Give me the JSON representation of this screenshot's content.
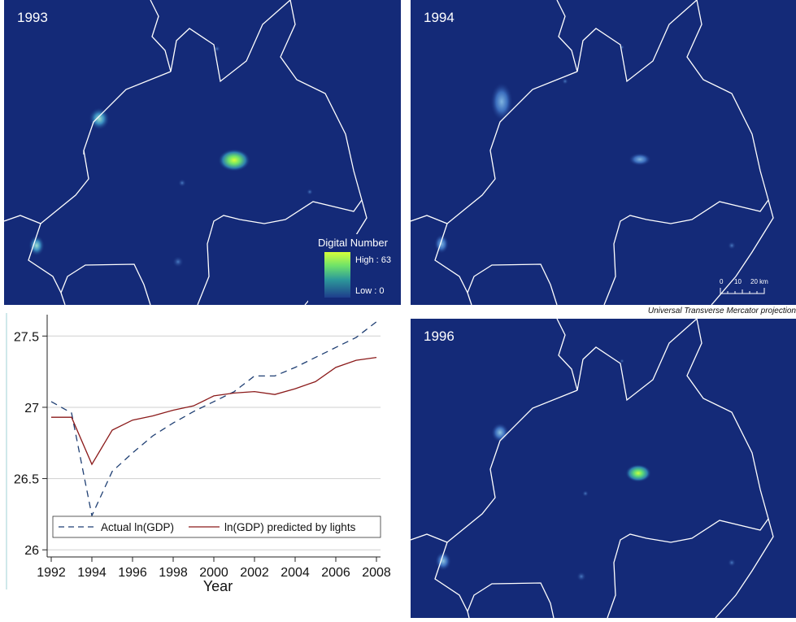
{
  "maps": [
    {
      "year_label": "1993"
    },
    {
      "year_label": "1994"
    },
    {
      "year_label": "1996"
    }
  ],
  "legend": {
    "title": "Digital Number",
    "high_label": "High : 63",
    "low_label": "Low : 0",
    "ramp_colors": [
      "#d6ff3a",
      "#6ee26a",
      "#2d9a9a",
      "#1e3e8c"
    ]
  },
  "scalebar": {
    "labels": [
      "0",
      "10",
      "20 km"
    ]
  },
  "projection_note": "Universal Transverse Mercator projection",
  "colors": {
    "background": "#142a78",
    "border": "#ffffff",
    "light_high": "#c8ff40",
    "light_mid": "#5ab4c8"
  },
  "chart_data": {
    "type": "line",
    "xlabel": "Year",
    "ylabel": "",
    "xlim": [
      1991.8,
      2008.2
    ],
    "ylim": [
      25.95,
      27.65
    ],
    "xticks": [
      1992,
      1994,
      1996,
      1998,
      2000,
      2002,
      2004,
      2006,
      2008
    ],
    "yticks": [
      26,
      26.5,
      27,
      27.5
    ],
    "ytick_labels": [
      "26",
      "26.5",
      "27",
      "27.5"
    ],
    "grid": true,
    "legend_position": "bottom",
    "x": [
      1992,
      1993,
      1994,
      1995,
      1996,
      1997,
      1998,
      1999,
      2000,
      2001,
      2002,
      2003,
      2004,
      2005,
      2006,
      2007,
      2008
    ],
    "series": [
      {
        "name": "Actual ln(GDP)",
        "color": "#1f3f73",
        "style": "dashed",
        "values": [
          27.04,
          26.96,
          26.24,
          26.55,
          26.68,
          26.8,
          26.89,
          26.97,
          27.04,
          27.11,
          27.22,
          27.22,
          27.28,
          27.35,
          27.42,
          27.49,
          27.6
        ]
      },
      {
        "name": "ln(GDP) predicted by lights",
        "color": "#8b1a1a",
        "style": "solid",
        "values": [
          26.93,
          26.93,
          26.6,
          26.84,
          26.91,
          26.94,
          26.98,
          27.01,
          27.08,
          27.1,
          27.11,
          27.09,
          27.13,
          27.18,
          27.28,
          27.33,
          27.35
        ]
      }
    ]
  }
}
